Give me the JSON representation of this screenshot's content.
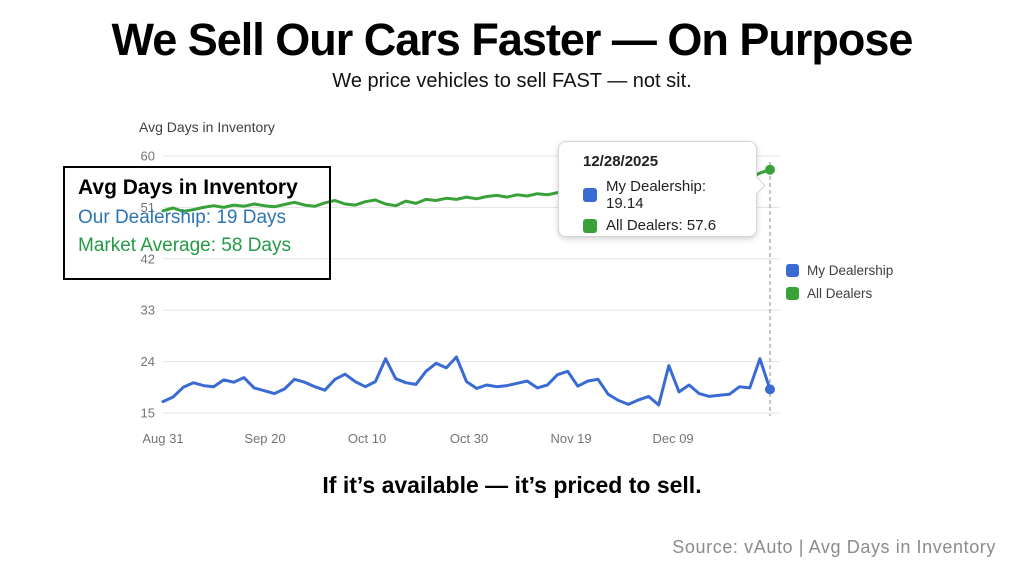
{
  "slide": {
    "title": "We Sell Our Cars Faster — On Purpose",
    "subtitle": "We price vehicles to sell FAST — not sit.",
    "statement": "If it’s available — it’s priced to sell.",
    "source": "Source: vAuto | Avg Days in Inventory"
  },
  "colors": {
    "my_dealership": "#3a6bd3",
    "all_dealers": "#38a239",
    "gridline": "#e3e3e3",
    "axis_label": "#757575",
    "crosshair": "#9aa0a6",
    "overlay_blue_text": "#2e74b5",
    "overlay_green_text": "#249a44"
  },
  "overlay_box": {
    "title": "Avg Days in Inventory",
    "line1": "Our Dealership: 19 Days",
    "line2": "Market Average: 58 Days"
  },
  "tooltip": {
    "date": "12/28/2025",
    "rows": [
      {
        "label": "My Dealership",
        "value": "19.14",
        "color": "#3a6bd3"
      },
      {
        "label": "All Dealers",
        "value": "57.6",
        "color": "#38a239"
      }
    ]
  },
  "legend": [
    {
      "label": "My Dealership",
      "color": "#3a6bd3"
    },
    {
      "label": "All Dealers",
      "color": "#38a239"
    }
  ],
  "chart_data": {
    "type": "line",
    "title": "Avg Days in Inventory",
    "xlabel": "",
    "ylabel": "",
    "grid": true,
    "legend_position": "right",
    "ylim": [
      15,
      60
    ],
    "y_ticks": [
      15,
      24,
      33,
      42,
      51,
      60
    ],
    "x_tick_labels": [
      "Aug 31",
      "Sep 20",
      "Oct 10",
      "Oct 30",
      "Nov 19",
      "Dec 09"
    ],
    "x_tick_days": [
      0,
      20,
      40,
      60,
      80,
      100
    ],
    "x_range_days": [
      0,
      119
    ],
    "x_start_date": "08/31/2025",
    "x_end_date": "12/28/2025",
    "crosshair_day": 119,
    "series": [
      {
        "name": "My Dealership",
        "color": "#3a6bd3",
        "end_value": 19.14,
        "values": [
          17.0,
          17.8,
          19.5,
          20.3,
          19.8,
          19.6,
          20.8,
          20.4,
          21.2,
          19.4,
          18.9,
          18.4,
          19.2,
          20.9,
          20.4,
          19.6,
          19.0,
          20.9,
          21.8,
          20.5,
          19.6,
          20.5,
          24.5,
          21.0,
          20.3,
          20.0,
          22.3,
          23.7,
          22.9,
          24.8,
          20.5,
          19.3,
          19.9,
          19.6,
          19.8,
          20.2,
          20.6,
          19.4,
          19.9,
          21.7,
          22.3,
          19.7,
          20.6,
          20.9,
          18.3,
          17.2,
          16.5,
          17.3,
          17.9,
          16.4,
          23.3,
          18.7,
          19.9,
          18.4,
          17.9,
          18.1,
          18.3,
          19.6,
          19.4,
          24.5,
          19.14
        ]
      },
      {
        "name": "All Dealers",
        "color": "#38a239",
        "end_value": 57.6,
        "values": [
          50.4,
          50.9,
          50.3,
          50.6,
          51.0,
          51.3,
          51.0,
          51.4,
          51.2,
          51.6,
          51.3,
          51.1,
          51.5,
          51.9,
          51.4,
          51.2,
          51.8,
          52.2,
          51.6,
          51.4,
          52.0,
          52.3,
          51.6,
          51.3,
          52.1,
          51.7,
          52.4,
          52.2,
          52.6,
          52.4,
          52.8,
          52.5,
          52.9,
          53.1,
          52.8,
          53.2,
          53.0,
          53.4,
          53.2,
          53.6,
          53.3,
          53.7,
          53.5,
          53.9,
          53.6,
          54.0,
          53.8,
          54.2,
          53.9,
          54.3,
          54.1,
          54.5,
          54.3,
          54.7,
          54.5,
          54.9,
          55.2,
          55.6,
          56.2,
          57.0,
          57.6
        ]
      }
    ]
  }
}
